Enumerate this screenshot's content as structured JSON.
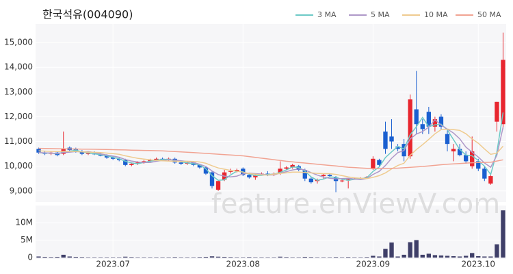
{
  "chart_data": {
    "type": "candlestick",
    "title": "한국석유(004090)",
    "watermark": "feature.enViewV.com",
    "up_color": "#e8262f",
    "down_color": "#1a5fd0",
    "volume_color": "#3f3f68",
    "categories": [
      null,
      null,
      null,
      null,
      null,
      null,
      null,
      null,
      null,
      null,
      null,
      null,
      "2023.07",
      null,
      null,
      null,
      null,
      null,
      null,
      null,
      null,
      null,
      null,
      null,
      null,
      null,
      null,
      null,
      null,
      null,
      null,
      null,
      null,
      "2023.08",
      null,
      null,
      null,
      null,
      null,
      null,
      null,
      null,
      null,
      null,
      null,
      null,
      null,
      null,
      null,
      null,
      null,
      null,
      null,
      null,
      "2023.09",
      null,
      null,
      null,
      null,
      null,
      null,
      null,
      null,
      null,
      null,
      null,
      null,
      null,
      null,
      null,
      null,
      "2023.10",
      null,
      null,
      null,
      null
    ],
    "open": [
      10700,
      10550,
      10500,
      10550,
      10500,
      10750,
      10700,
      10600,
      10500,
      10520,
      10480,
      10420,
      10350,
      10300,
      10250,
      10050,
      10100,
      10150,
      10200,
      10250,
      10300,
      10250,
      10300,
      10150,
      10100,
      10150,
      10050,
      9950,
      9750,
      9050,
      9450,
      9800,
      9800,
      9900,
      9650,
      9550,
      9700,
      9700,
      9650,
      9700,
      9900,
      9950,
      10000,
      9850,
      9500,
      9400,
      9600,
      9650,
      9550,
      9400,
      9420,
      9480,
      9500,
      9520,
      9900,
      10250,
      11400,
      11200,
      10800,
      10900,
      10400,
      12300,
      11700,
      12200,
      11600,
      12000,
      11300,
      10600,
      10700,
      10450,
      10000,
      10200,
      9900,
      9300,
      11800,
      11700
    ],
    "high": [
      10750,
      10600,
      10600,
      10600,
      11400,
      10800,
      10750,
      10650,
      10550,
      10600,
      10550,
      10480,
      10400,
      10350,
      10300,
      10150,
      10200,
      10250,
      10300,
      10350,
      10350,
      10350,
      10350,
      10200,
      10200,
      10200,
      10100,
      10000,
      9800,
      9450,
      9850,
      9900,
      9900,
      9950,
      9700,
      9700,
      9750,
      9800,
      9750,
      10200,
      10000,
      10100,
      10050,
      9900,
      9550,
      9500,
      9700,
      9700,
      9600,
      9450,
      9500,
      9550,
      9550,
      9600,
      10400,
      10300,
      11800,
      11900,
      10900,
      11100,
      12900,
      13850,
      11900,
      12400,
      12000,
      12100,
      11450,
      10900,
      10900,
      10600,
      11200,
      10300,
      10000,
      9700,
      12600,
      15400
    ],
    "low": [
      10500,
      10450,
      10450,
      10400,
      10450,
      10600,
      10550,
      10450,
      10450,
      10450,
      10400,
      10300,
      10250,
      10200,
      10000,
      10000,
      10050,
      10100,
      10150,
      10200,
      10200,
      10200,
      10100,
      10050,
      10050,
      10000,
      9900,
      9650,
      9100,
      9000,
      9400,
      9700,
      9750,
      9600,
      9500,
      9450,
      9650,
      9600,
      9600,
      9650,
      9850,
      9900,
      9800,
      9400,
      9300,
      9300,
      9500,
      9550,
      8950,
      9350,
      9100,
      9450,
      9480,
      9500,
      9850,
      10000,
      10500,
      10700,
      10600,
      10200,
      10300,
      11300,
      11300,
      11300,
      11400,
      11500,
      10600,
      10200,
      10400,
      10100,
      9900,
      9800,
      9400,
      9250,
      11400,
      11500
    ],
    "close": [
      10550,
      10500,
      10550,
      10450,
      10700,
      10650,
      10600,
      10500,
      10520,
      10480,
      10420,
      10350,
      10300,
      10250,
      10050,
      10100,
      10150,
      10200,
      10250,
      10300,
      10250,
      10300,
      10150,
      10100,
      10150,
      10050,
      9950,
      9700,
      9200,
      9400,
      9750,
      9800,
      9850,
      9650,
      9550,
      9650,
      9700,
      9650,
      9700,
      9900,
      9950,
      10050,
      9850,
      9500,
      9350,
      9450,
      9650,
      9600,
      9400,
      9420,
      9480,
      9500,
      9520,
      9560,
      10300,
      10050,
      10700,
      11000,
      10700,
      10400,
      12700,
      11700,
      11500,
      11600,
      11900,
      11600,
      10900,
      10700,
      10450,
      10200,
      10600,
      9900,
      9500,
      9600,
      12600,
      14300
    ],
    "volume": [
      300000,
      200000,
      150000,
      200000,
      800000,
      300000,
      200000,
      150000,
      100000,
      100000,
      100000,
      100000,
      100000,
      100000,
      250000,
      150000,
      100000,
      100000,
      100000,
      100000,
      100000,
      100000,
      150000,
      100000,
      100000,
      100000,
      150000,
      200000,
      350000,
      250000,
      200000,
      150000,
      100000,
      100000,
      150000,
      100000,
      100000,
      100000,
      100000,
      250000,
      150000,
      100000,
      100000,
      200000,
      150000,
      100000,
      100000,
      100000,
      150000,
      100000,
      150000,
      100000,
      100000,
      150000,
      500000,
      300000,
      2500000,
      4300000,
      300000,
      800000,
      4400000,
      5000000,
      800000,
      1100000,
      700000,
      600000,
      500000,
      400000,
      300000,
      500000,
      1300000,
      400000,
      300000,
      300000,
      3800000,
      13500000
    ],
    "series": [
      {
        "name": "3 MA",
        "color": "#6cc9c6",
        "values": [
          10550,
          10530,
          10530,
          10500,
          10570,
          10600,
          10650,
          10580,
          10540,
          10500,
          10470,
          10420,
          10360,
          10300,
          10200,
          10130,
          10100,
          10150,
          10200,
          10250,
          10270,
          10280,
          10230,
          10180,
          10130,
          10100,
          10050,
          9900,
          9620,
          9430,
          9450,
          9650,
          9800,
          9770,
          9680,
          9620,
          9630,
          9670,
          9680,
          9750,
          9850,
          9970,
          9950,
          9800,
          9570,
          9430,
          9480,
          9570,
          9550,
          9470,
          9430,
          9470,
          9500,
          9530,
          9790,
          9970,
          10350,
          10580,
          10800,
          10700,
          11270,
          11600,
          11970,
          11600,
          11670,
          11700,
          11470,
          11070,
          10680,
          10450,
          10420,
          10230,
          10000,
          9670,
          10570,
          12170
        ]
      },
      {
        "name": "5 MA",
        "color": "#ae98c8",
        "values": [
          10550,
          10540,
          10530,
          10510,
          10550,
          10570,
          10590,
          10580,
          10590,
          10550,
          10500,
          10450,
          10410,
          10360,
          10270,
          10210,
          10170,
          10150,
          10150,
          10200,
          10230,
          10260,
          10250,
          10220,
          10190,
          10150,
          10080,
          9990,
          9810,
          9660,
          9600,
          9570,
          9600,
          9690,
          9720,
          9700,
          9680,
          9640,
          9650,
          9720,
          9780,
          9850,
          9890,
          9850,
          9740,
          9640,
          9560,
          9510,
          9490,
          9500,
          9510,
          9480,
          9460,
          9500,
          9670,
          9790,
          10030,
          10320,
          10550,
          10630,
          11100,
          11300,
          11400,
          11580,
          11880,
          11660,
          11500,
          11340,
          11110,
          10770,
          10570,
          10370,
          10130,
          9960,
          10440,
          11580
        ]
      },
      {
        "name": "10 MA",
        "color": "#efcb8f",
        "values": [
          10620,
          10610,
          10600,
          10590,
          10600,
          10600,
          10590,
          10580,
          10570,
          10560,
          10550,
          10530,
          10510,
          10480,
          10420,
          10370,
          10320,
          10290,
          10260,
          10230,
          10220,
          10210,
          10200,
          10190,
          10200,
          10190,
          10170,
          10120,
          10020,
          9930,
          9880,
          9830,
          9800,
          9760,
          9700,
          9680,
          9650,
          9640,
          9680,
          9710,
          9730,
          9760,
          9760,
          9750,
          9730,
          9710,
          9700,
          9700,
          9670,
          9620,
          9570,
          9530,
          9510,
          9500,
          9550,
          9620,
          9730,
          9890,
          10030,
          10120,
          10440,
          10670,
          10870,
          11080,
          11310,
          11480,
          11500,
          11480,
          11450,
          11310,
          11100,
          10930,
          10700,
          10480,
          10530,
          10810
        ]
      },
      {
        "name": "50 MA",
        "color": "#f1a392",
        "values": [
          10720,
          10716,
          10712,
          10708,
          10704,
          10700,
          10696,
          10692,
          10688,
          10684,
          10680,
          10674,
          10668,
          10662,
          10656,
          10650,
          10644,
          10638,
          10632,
          10626,
          10620,
          10606,
          10591,
          10577,
          10563,
          10549,
          10534,
          10520,
          10503,
          10487,
          10470,
          10453,
          10437,
          10420,
          10389,
          10357,
          10326,
          10294,
          10263,
          10231,
          10200,
          10176,
          10152,
          10128,
          10104,
          10080,
          10056,
          10032,
          10008,
          9984,
          9960,
          9945,
          9930,
          9915,
          9900,
          9905,
          9910,
          9915,
          9920,
          9938,
          9955,
          9973,
          9990,
          10013,
          10035,
          10058,
          10080,
          10095,
          10110,
          10125,
          10140,
          10147,
          10153,
          10160,
          10210,
          10260
        ]
      }
    ],
    "ylim": [
      8550,
      15750
    ],
    "yticks": [
      {
        "value": 9000,
        "label": "9,000"
      },
      {
        "value": 10000,
        "label": "10,000"
      },
      {
        "value": 11000,
        "label": "11,000"
      },
      {
        "value": 12000,
        "label": "12,000"
      },
      {
        "value": 13000,
        "label": "13,000"
      },
      {
        "value": 14000,
        "label": "14,000"
      },
      {
        "value": 15000,
        "label": "15,000"
      }
    ],
    "y2lim": [
      0,
      14500000
    ],
    "y2ticks": [
      0,
      {
        "value": 5000000,
        "label": "5M"
      },
      {
        "value": 10000000,
        "label": "10M"
      }
    ]
  }
}
